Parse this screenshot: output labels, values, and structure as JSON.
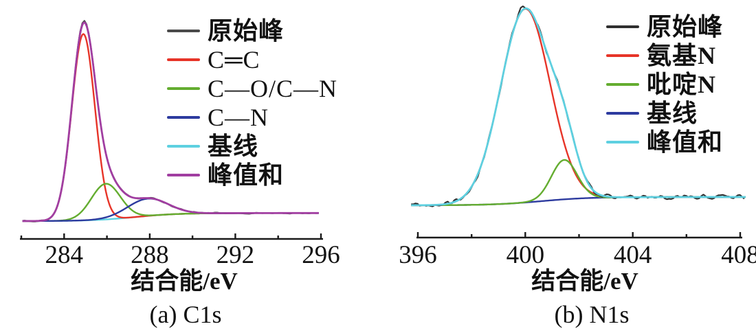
{
  "figure": {
    "background": "#ffffff",
    "axis_color": "#1a1a1a"
  },
  "chart_data": [
    {
      "type": "line",
      "panel": "a",
      "caption": "(a) C1s",
      "xlabel": "结合能/eV",
      "x_range": [
        282,
        296
      ],
      "data_range": [
        282.05,
        295.9
      ],
      "x_ticks_major": [
        284,
        288,
        292,
        296
      ],
      "x_ticks_minor": [
        282,
        286,
        290,
        294
      ],
      "y_axis_note": "intensity, arbitrary units, no y axis drawn",
      "series": [
        {
          "name": "原始峰",
          "color": "#4a4a4a",
          "role": "raw"
        },
        {
          "name": "C═C",
          "color": "#e73428",
          "role": "peak",
          "center_eV": 284.9,
          "sigma_eV": 0.54,
          "amplitude": 0.93
        },
        {
          "name": "C—O/C—N",
          "color": "#64ad30",
          "role": "peak",
          "center_eV": 285.95,
          "sigma_eV": 0.68,
          "amplitude": 0.178
        },
        {
          "name": "C—N",
          "color": "#2d3b9f",
          "role": "peak",
          "center_eV": 287.9,
          "sigma_eV": 0.95,
          "amplitude": 0.086
        },
        {
          "name": "基线",
          "color": "#5ed0e0",
          "role": "baseline",
          "step_height": 0.04,
          "step_center_eV": 287.3,
          "step_width_eV": 1.0
        },
        {
          "name": "峰值和",
          "color": "#a13ea1",
          "role": "sum"
        }
      ],
      "raw_noise": {
        "amplitude": 0.004,
        "apex_excess": 0.012,
        "step_eV": 0.1
      }
    },
    {
      "type": "line",
      "panel": "b",
      "caption": "(b) N1s",
      "xlabel": "结合能/eV",
      "x_range": [
        396,
        408
      ],
      "data_range": [
        395.75,
        408.2
      ],
      "x_ticks_major": [
        396,
        400,
        404,
        408
      ],
      "x_ticks_minor": [
        398,
        402,
        406
      ],
      "y_axis_note": "intensity, arbitrary units, no y axis drawn",
      "series": [
        {
          "name": "原始峰",
          "color": "#2f2f2f",
          "role": "raw"
        },
        {
          "name": "氨基N",
          "color": "#e73428",
          "role": "peak",
          "center_eV": 400.0,
          "sigma_eV": 0.92,
          "amplitude": 0.983
        },
        {
          "name": "吡啶N",
          "color": "#64ad30",
          "role": "peak",
          "center_eV": 401.45,
          "sigma_eV": 0.48,
          "amplitude": 0.2
        },
        {
          "name": "基线",
          "color": "#2d3b9f",
          "role": "baseline",
          "step_height": 0.042,
          "step_center_eV": 400.6,
          "step_width_eV": 0.9
        },
        {
          "name": "峰值和",
          "color": "#5ed0e0",
          "role": "sum"
        }
      ],
      "raw_noise": {
        "amplitude": 0.018,
        "apex_excess": 0.01,
        "step_eV": 0.08
      }
    }
  ]
}
